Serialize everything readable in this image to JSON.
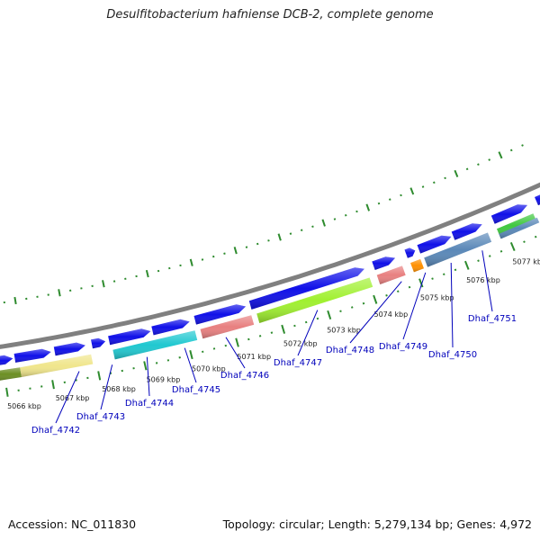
{
  "title": "Desulfitobacterium hafniense DCB-2, complete genome",
  "footer": {
    "accession": "Accession: NC_011830",
    "summary": "Topology: circular; Length: 5,279,134 bp; Genes: 4,972"
  },
  "kbp_labels": [
    "5066 kbp",
    "5067 kbp",
    "5068 kbp",
    "5069 kbp",
    "5070 kbp",
    "5071 kbp",
    "5072 kbp",
    "5073 kbp",
    "5074 kbp",
    "5075 kbp",
    "5076 kbp",
    "5077 kbp"
  ],
  "gene_labels": [
    "Dhaf_4742",
    "Dhaf_4743",
    "Dhaf_4744",
    "Dhaf_4745",
    "Dhaf_4746",
    "Dhaf_4747",
    "Dhaf_4748",
    "Dhaf_4749",
    "Dhaf_4750",
    "Dhaf_4751"
  ],
  "colors": {
    "backbone": "#808080",
    "cds": "#1010e8",
    "tick": "#2e8b2e",
    "gene_label": "#0000bb",
    "cog": [
      "#6b8e23",
      "#f0e68c",
      "#20c8d0",
      "#e88080",
      "#a0f030",
      "#e88080",
      "#ff9000",
      "#5a88b8",
      "#40c840",
      "#5a88b8"
    ]
  }
}
